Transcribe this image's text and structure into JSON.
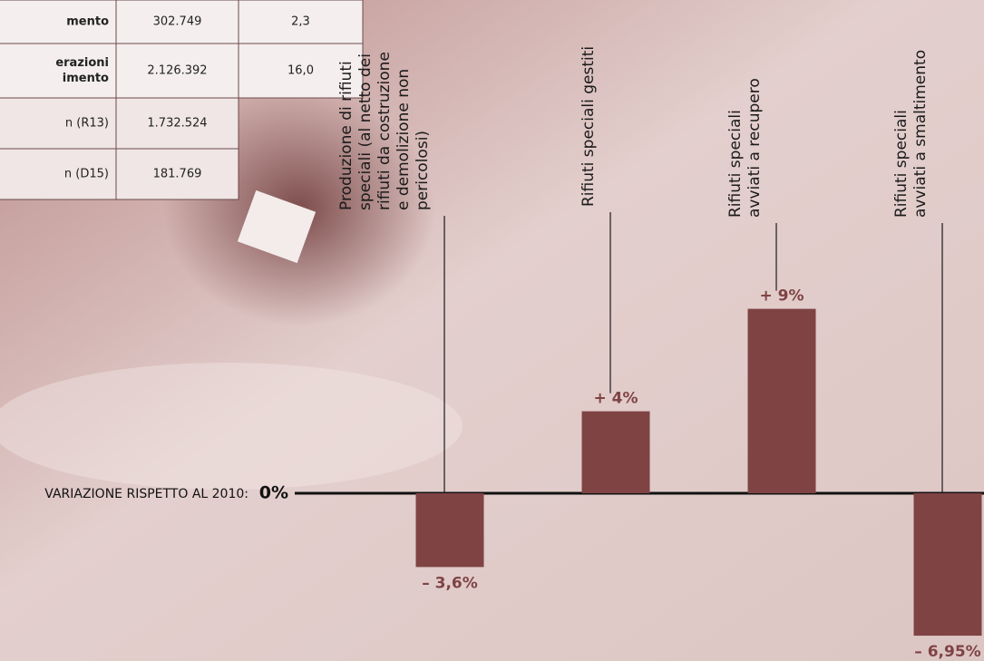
{
  "table": {
    "rows": [
      [
        "mento",
        "302.749",
        "2,3"
      ],
      [
        [
          "erazioni",
          "imento"
        ],
        "2.126.392",
        "16,0"
      ],
      [
        "n (R13)",
        "1.732.524"
      ],
      [
        "n (D15)",
        "181.769"
      ]
    ]
  },
  "chart_data": {
    "type": "bar",
    "categories": [
      [
        "Produzione di rifiuti",
        "speciali (al netto dei",
        "rifiuti da costruzione",
        "e demolizione non",
        "pericolosi)"
      ],
      [
        "Rifiuti speciali  gestiti"
      ],
      [
        "Rifiuti speciali",
        "avviati a recupero"
      ],
      [
        "Rifiuti speciali",
        "avviati a smaltimento"
      ]
    ],
    "values": [
      -3.6,
      4,
      9,
      -6.95
    ],
    "value_labels": [
      "– 3,6%",
      "+ 4%",
      "+ 9%",
      "– 6,95%"
    ],
    "color": "#7f4344",
    "ylim": [
      -8,
      10
    ],
    "yticks": [
      {
        "value": 0,
        "label": "0%"
      }
    ],
    "baseline_label": "VARIAZIONE RISPETTO AL 2010:",
    "grid": false
  }
}
